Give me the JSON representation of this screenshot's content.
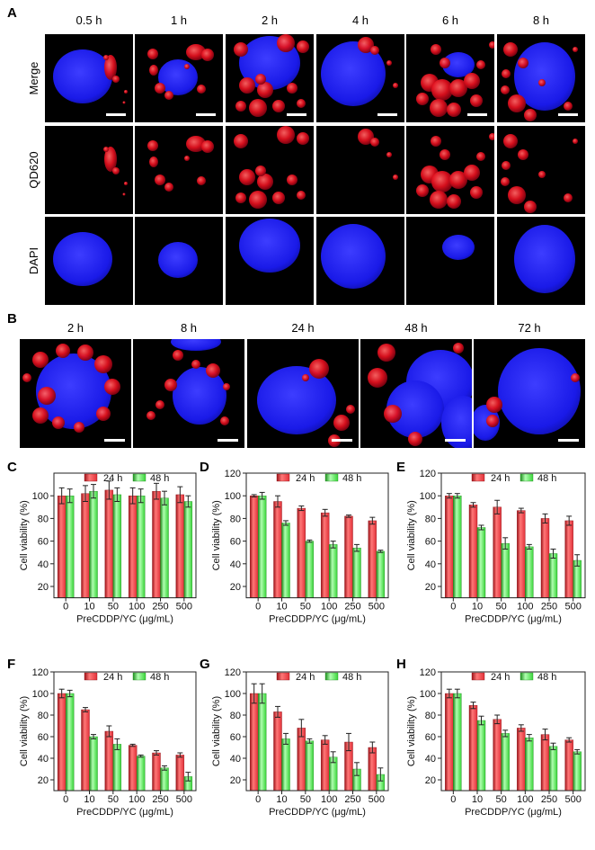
{
  "figure": {
    "panel_labels": {
      "a": "A",
      "b": "B"
    },
    "panel_a": {
      "time_labels": [
        "0.5 h",
        "1 h",
        "2 h",
        "4 h",
        "6 h",
        "8 h"
      ],
      "row_labels": [
        "Merge",
        "QD620",
        "DAPI"
      ]
    },
    "panel_b": {
      "time_labels": [
        "2 h",
        "8 h",
        "24 h",
        "48 h",
        "72 h"
      ]
    }
  },
  "colors": {
    "image_background": "#000000",
    "nucleus_dapi": "#1a1ae8",
    "quantum_dot_qd620": "#e0101e",
    "scale_bar": "#ffffff",
    "bar_24h": "#e23038",
    "bar_48h": "#39d439"
  },
  "chart_data": [
    {
      "panel": "C",
      "type": "bar",
      "categories": [
        "0",
        "10",
        "50",
        "100",
        "250",
        "500"
      ],
      "series": [
        {
          "name": "24 h",
          "values": [
            100,
            102,
            105,
            100,
            104,
            101
          ],
          "errors": [
            7,
            7,
            8,
            7,
            7,
            7
          ]
        },
        {
          "name": "48 h",
          "values": [
            100,
            104,
            101,
            100,
            98,
            95
          ],
          "errors": [
            6,
            6,
            6,
            6,
            6,
            5
          ]
        }
      ],
      "xlabel": "PreCDDP/YC (μg/mL)",
      "ylabel": "Cell viability (%)",
      "ylim": [
        10,
        120
      ],
      "yticks": [
        20,
        40,
        60,
        80,
        100
      ],
      "legend": "top",
      "grid": false
    },
    {
      "panel": "D",
      "type": "bar",
      "categories": [
        "0",
        "10",
        "50",
        "100",
        "250",
        "500"
      ],
      "series": [
        {
          "name": "24 h",
          "values": [
            100,
            95,
            89,
            85,
            82,
            78
          ],
          "errors": [
            1,
            5,
            2,
            3,
            1,
            3
          ]
        },
        {
          "name": "48 h",
          "values": [
            100,
            76,
            60,
            57,
            54,
            51
          ],
          "errors": [
            3,
            2,
            1,
            3,
            3,
            1
          ]
        }
      ],
      "xlabel": "PreCDDP/YC (μg/mL)",
      "ylabel": "Cell viability (%)",
      "ylim": [
        10,
        120
      ],
      "yticks": [
        20,
        40,
        60,
        80,
        100,
        120
      ],
      "legend": "top",
      "grid": false
    },
    {
      "panel": "E",
      "type": "bar",
      "categories": [
        "0",
        "10",
        "50",
        "100",
        "250",
        "500"
      ],
      "series": [
        {
          "name": "24 h",
          "values": [
            100,
            92,
            90,
            87,
            80,
            78
          ],
          "errors": [
            2,
            2,
            6,
            2,
            4,
            4
          ]
        },
        {
          "name": "48 h",
          "values": [
            100,
            72,
            58,
            55,
            49,
            43
          ],
          "errors": [
            2,
            2,
            5,
            2,
            4,
            5
          ]
        }
      ],
      "xlabel": "PreCDDP/YC (μg/mL)",
      "ylabel": "Cell viability (%)",
      "ylim": [
        10,
        120
      ],
      "yticks": [
        20,
        40,
        60,
        80,
        100,
        120
      ],
      "legend": "top",
      "grid": false
    },
    {
      "panel": "F",
      "type": "bar",
      "categories": [
        "0",
        "10",
        "50",
        "100",
        "250",
        "500"
      ],
      "series": [
        {
          "name": "24 h",
          "values": [
            100,
            85,
            65,
            52,
            45,
            43
          ],
          "errors": [
            4,
            2,
            5,
            1,
            2,
            2
          ]
        },
        {
          "name": "48 h",
          "values": [
            100,
            60,
            53,
            42,
            31,
            23
          ],
          "errors": [
            3,
            2,
            5,
            1,
            2,
            4
          ]
        }
      ],
      "xlabel": "PreCDDP/YC (μg/mL)",
      "ylabel": "Cell viability (%)",
      "ylim": [
        10,
        120
      ],
      "yticks": [
        20,
        40,
        60,
        80,
        100,
        120
      ],
      "legend": "top",
      "grid": false
    },
    {
      "panel": "G",
      "type": "bar",
      "categories": [
        "0",
        "10",
        "50",
        "100",
        "250",
        "500"
      ],
      "series": [
        {
          "name": "24 h",
          "values": [
            100,
            83,
            68,
            57,
            55,
            50
          ],
          "errors": [
            9,
            5,
            8,
            4,
            8,
            5
          ]
        },
        {
          "name": "48 h",
          "values": [
            100,
            58,
            56,
            41,
            30,
            25
          ],
          "errors": [
            9,
            5,
            2,
            5,
            6,
            6
          ]
        }
      ],
      "xlabel": "PreCDDP/YC (μg/mL)",
      "ylabel": "Cell viability (%)",
      "ylim": [
        10,
        120
      ],
      "yticks": [
        20,
        40,
        60,
        80,
        100,
        120
      ],
      "legend": "top",
      "grid": false
    },
    {
      "panel": "H",
      "type": "bar",
      "categories": [
        "0",
        "10",
        "50",
        "100",
        "250",
        "500"
      ],
      "series": [
        {
          "name": "24 h",
          "values": [
            100,
            89,
            76,
            68,
            62,
            57
          ],
          "errors": [
            4,
            3,
            4,
            3,
            5,
            2
          ]
        },
        {
          "name": "48 h",
          "values": [
            100,
            75,
            63,
            59,
            51,
            46
          ],
          "errors": [
            4,
            4,
            3,
            3,
            3,
            2
          ]
        }
      ],
      "xlabel": "PreCDDP/YC (μg/mL)",
      "ylabel": "Cell viability (%)",
      "ylim": [
        10,
        120
      ],
      "yticks": [
        20,
        40,
        60,
        80,
        100,
        120
      ],
      "legend": "top",
      "grid": false
    }
  ]
}
